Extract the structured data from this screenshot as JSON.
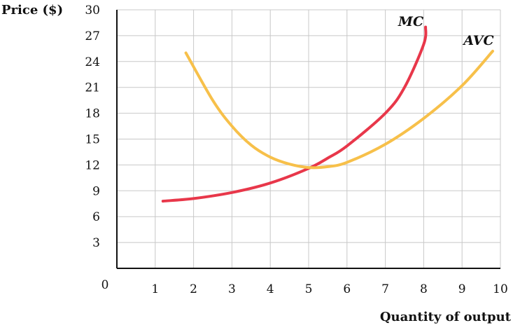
{
  "chart_data": {
    "type": "line",
    "xlabel": "Quantity of output",
    "ylabel": "Price ($)",
    "origin_label": "0",
    "xlim": [
      0,
      10
    ],
    "ylim": [
      0,
      30
    ],
    "x_ticks": [
      "1",
      "2",
      "3",
      "4",
      "5",
      "6",
      "7",
      "8",
      "9",
      "10"
    ],
    "y_ticks": [
      "3",
      "6",
      "9",
      "12",
      "15",
      "18",
      "21",
      "24",
      "27",
      "30"
    ],
    "grid": true,
    "series": [
      {
        "name": "MC",
        "color": "#e8374a",
        "x": [
          1.2,
          2,
          3,
          4,
          5,
          5.5,
          6,
          7,
          7.5,
          8,
          8.05
        ],
        "y": [
          7.8,
          8.1,
          8.8,
          9.9,
          11.6,
          12.8,
          14.2,
          18.0,
          21.0,
          26.0,
          28.0
        ]
      },
      {
        "name": "AVC",
        "color": "#f7c04a",
        "x": [
          1.8,
          2.5,
          3,
          3.5,
          4,
          4.5,
          5,
          5.5,
          6,
          7,
          8,
          9,
          9.8
        ],
        "y": [
          25.0,
          19.5,
          16.5,
          14.3,
          12.9,
          12.1,
          11.7,
          11.8,
          12.3,
          14.4,
          17.4,
          21.2,
          25.2
        ]
      }
    ]
  }
}
